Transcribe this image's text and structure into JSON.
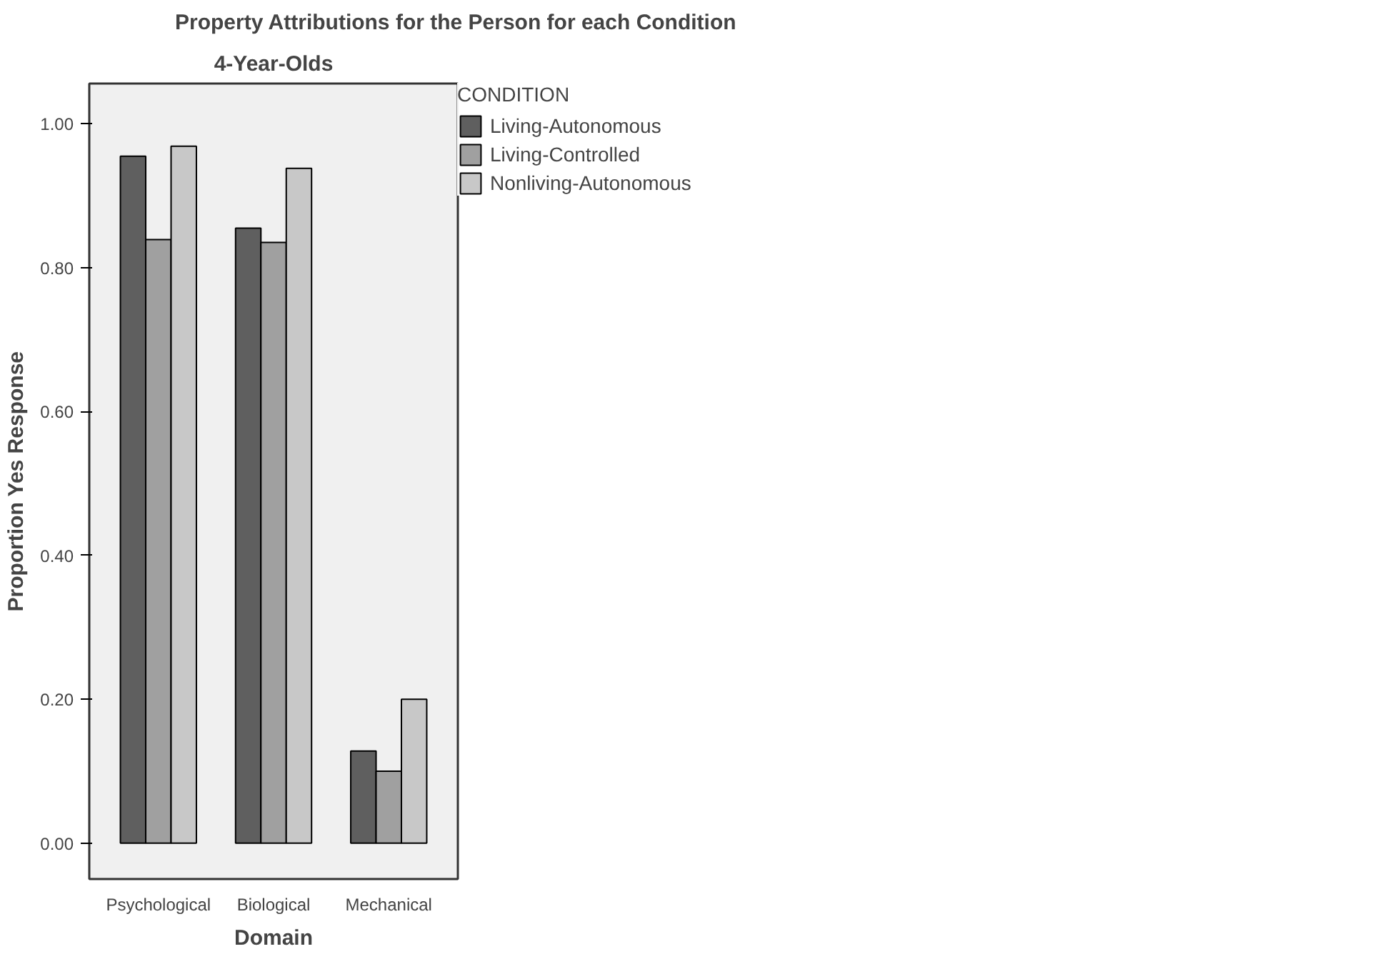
{
  "chart_data": {
    "type": "bar",
    "title": "Property Attributions for the Person for each Condition",
    "subtitle": "4-Year-Olds",
    "xlabel": "Domain",
    "ylabel": "Proportion Yes Response",
    "legend_title": "CONDITION",
    "categories": [
      "Psychological",
      "Biological",
      "Mechanical"
    ],
    "series": [
      {
        "name": "Living-Autonomous",
        "color": "#5f5f5f",
        "values": [
          0.955,
          0.855,
          0.128
        ]
      },
      {
        "name": "Living-Controlled",
        "color": "#a0a0a0",
        "values": [
          0.839,
          0.835,
          0.1
        ]
      },
      {
        "name": "Nonliving-Autonomous",
        "color": "#c8c8c8",
        "values": [
          0.969,
          0.938,
          0.2
        ]
      }
    ],
    "ylim": [
      -0.05,
      1.056
    ],
    "yticks": [
      {
        "value": 0,
        "label": "0.00"
      },
      {
        "value": 0.2,
        "label": "0.20"
      },
      {
        "value": 0.4,
        "label": "0.40"
      },
      {
        "value": 0.6,
        "label": "0.60"
      },
      {
        "value": 0.8,
        "label": "0.80"
      },
      {
        "value": 1,
        "label": "1.00"
      }
    ],
    "grid": false,
    "legend": "top right"
  }
}
